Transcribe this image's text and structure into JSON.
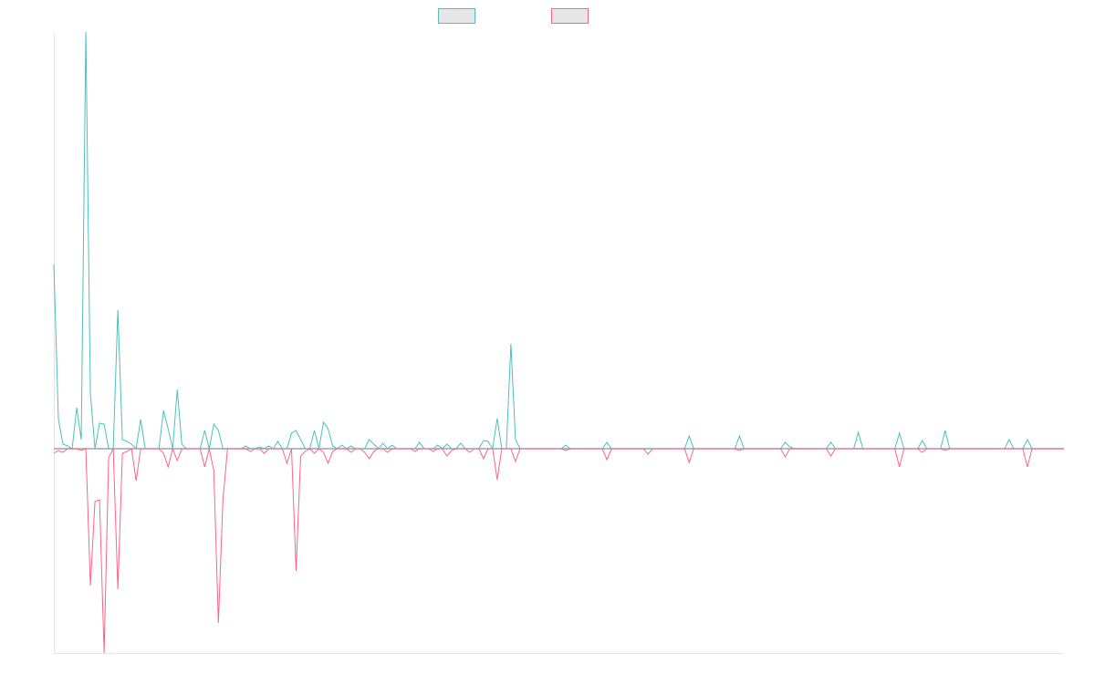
{
  "chart_data": {
    "type": "line",
    "ylim": [
      -224,
      457
    ],
    "series": [
      {
        "color": "#4bc0c0",
        "values": [
          202,
          32,
          5,
          3,
          0,
          45,
          10,
          457,
          60,
          0,
          28,
          27,
          0,
          0,
          152,
          10,
          8,
          5,
          0,
          32,
          0,
          0,
          0,
          0,
          42,
          22,
          0,
          65,
          5,
          0,
          0,
          0,
          0,
          20,
          0,
          27,
          20,
          0,
          0,
          0,
          0,
          0,
          3,
          0,
          0,
          2,
          0,
          3,
          0,
          8,
          0,
          0,
          17,
          20,
          10,
          0,
          0,
          20,
          0,
          29,
          22,
          3,
          0,
          4,
          0,
          3,
          0,
          0,
          0,
          10,
          5,
          0,
          6,
          0,
          4,
          0,
          0,
          0,
          0,
          0,
          7,
          0,
          0,
          0,
          4,
          0,
          5,
          0,
          0,
          6,
          0,
          0,
          0,
          0,
          9,
          8,
          0,
          33,
          0,
          0,
          115,
          10,
          0,
          0,
          0,
          0,
          0,
          0,
          0,
          0,
          0,
          0,
          4,
          0,
          0,
          0,
          0,
          0,
          0,
          0,
          0,
          7,
          0,
          0,
          0,
          0,
          0,
          0,
          0,
          0,
          0,
          0,
          0,
          0,
          0,
          0,
          0,
          0,
          0,
          14,
          0,
          0,
          0,
          0,
          0,
          0,
          0,
          0,
          0,
          0,
          14,
          0,
          0,
          0,
          0,
          0,
          0,
          0,
          0,
          0,
          7,
          2,
          0,
          0,
          0,
          0,
          0,
          0,
          0,
          0,
          7,
          0,
          0,
          0,
          0,
          0,
          18,
          0,
          0,
          0,
          0,
          0,
          0,
          0,
          0,
          17,
          0,
          0,
          0,
          0,
          9,
          0,
          0,
          0,
          0,
          20,
          0,
          0,
          0,
          0,
          0,
          0,
          0,
          0,
          0,
          0,
          0,
          0,
          0,
          10,
          0,
          0,
          0,
          10,
          0,
          0,
          0,
          0,
          0,
          0,
          0,
          0
        ]
      },
      {
        "color": "#ff6384",
        "values": [
          -5,
          -2,
          -4,
          0,
          0,
          0,
          -2,
          0,
          -150,
          -58,
          -56,
          -224,
          -10,
          0,
          -154,
          -5,
          -3,
          0,
          -35,
          0,
          0,
          0,
          0,
          0,
          -5,
          -20,
          0,
          -13,
          0,
          0,
          0,
          0,
          0,
          -20,
          0,
          -24,
          -191,
          -56,
          0,
          0,
          0,
          0,
          0,
          -3,
          0,
          0,
          -5,
          0,
          0,
          0,
          0,
          -16,
          0,
          -134,
          -8,
          -3,
          0,
          -5,
          0,
          -4,
          -16,
          -3,
          0,
          0,
          0,
          -4,
          0,
          0,
          -4,
          -11,
          -3,
          0,
          0,
          -4,
          0,
          0,
          0,
          0,
          0,
          -3,
          0,
          0,
          0,
          -3,
          0,
          0,
          -8,
          -2,
          0,
          0,
          0,
          -4,
          0,
          0,
          -11,
          0,
          0,
          -34,
          0,
          0,
          0,
          -14,
          0,
          0,
          0,
          0,
          0,
          0,
          0,
          0,
          0,
          0,
          -2,
          0,
          0,
          0,
          0,
          0,
          0,
          0,
          0,
          -12,
          0,
          0,
          0,
          0,
          0,
          0,
          0,
          0,
          -6,
          0,
          0,
          0,
          0,
          0,
          0,
          0,
          0,
          -15,
          0,
          0,
          0,
          0,
          0,
          0,
          0,
          0,
          0,
          0,
          -2,
          0,
          0,
          0,
          0,
          0,
          0,
          0,
          0,
          0,
          -9,
          0,
          0,
          0,
          0,
          0,
          0,
          0,
          0,
          0,
          -8,
          0,
          0,
          0,
          0,
          0,
          0,
          0,
          0,
          0,
          0,
          0,
          0,
          0,
          0,
          -20,
          0,
          0,
          0,
          0,
          -4,
          0,
          0,
          0,
          0,
          -2,
          0,
          0,
          0,
          0,
          0,
          0,
          0,
          0,
          0,
          0,
          0,
          0,
          0,
          0,
          0,
          0,
          0,
          -20,
          0,
          0,
          0,
          0,
          0,
          0,
          0,
          0
        ]
      }
    ]
  }
}
